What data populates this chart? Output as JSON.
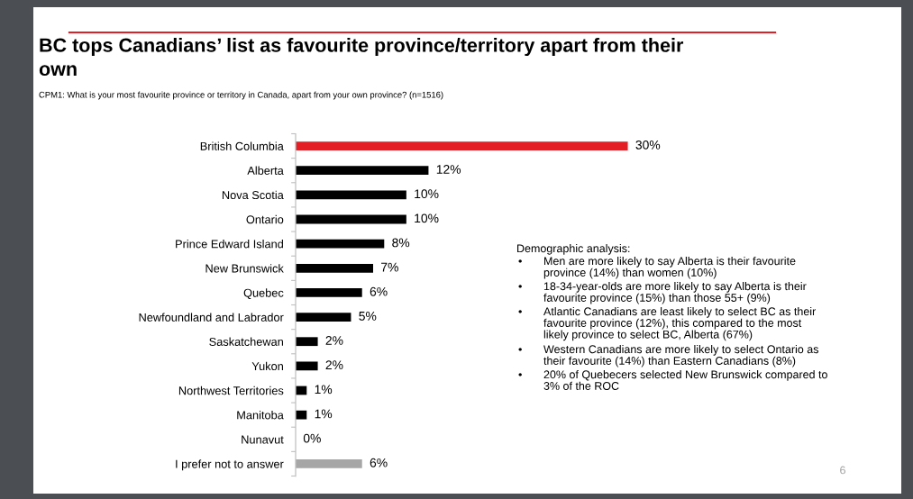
{
  "chart_data": {
    "type": "bar",
    "orientation": "horizontal",
    "title": "BC tops Canadians’ list as favourite province/territory apart from their\nown",
    "subtitle": "CPM1: What is your most favourite province or territory in Canada, apart from your own province? (n=1516)",
    "categories": [
      "British Columbia",
      "Alberta",
      "Nova Scotia",
      "Ontario",
      "Prince Edward Island",
      "New Brunswick",
      "Quebec",
      "Newfoundland and Labrador",
      "Saskatchewan",
      "Yukon",
      "Northwest Territories",
      "Manitoba",
      "Nunavut",
      "I prefer not to answer"
    ],
    "values": [
      30,
      12,
      10,
      10,
      8,
      7,
      6,
      5,
      2,
      2,
      1,
      1,
      0,
      6
    ],
    "value_labels": [
      "30%",
      "12%",
      "10%",
      "10%",
      "8%",
      "7%",
      "6%",
      "5%",
      "2%",
      "2%",
      "1%",
      "1%",
      "0%",
      "6%"
    ],
    "colors": [
      "#e31e24",
      "#000000",
      "#000000",
      "#000000",
      "#000000",
      "#000000",
      "#000000",
      "#000000",
      "#000000",
      "#000000",
      "#000000",
      "#000000",
      "#000000",
      "#a6a6a6"
    ],
    "tick_labels": "y",
    "annotations": [
      "Demographic analysis:",
      "• Men are more likely to say Alberta is their favourite\nprovince (14%) than women (10%)",
      "• 18-34-year-olds are more likely to say Alberta is their\nfavourite province (15%) than those 55+ (9%)",
      "• Atlantic Canadians are least likely to select BC as their\nfavourite province (12%), this compared to the most\nlikely province to select BC, Alberta (67%)",
      "• Western Canadians are more likely to select Ontario as\ntheir favourite (14%) than Eastern Canadians (8%)",
      "• 20% of Quebecers selected New Brunswick compared to\n3% of the ROC",
      "6"
    ]
  }
}
